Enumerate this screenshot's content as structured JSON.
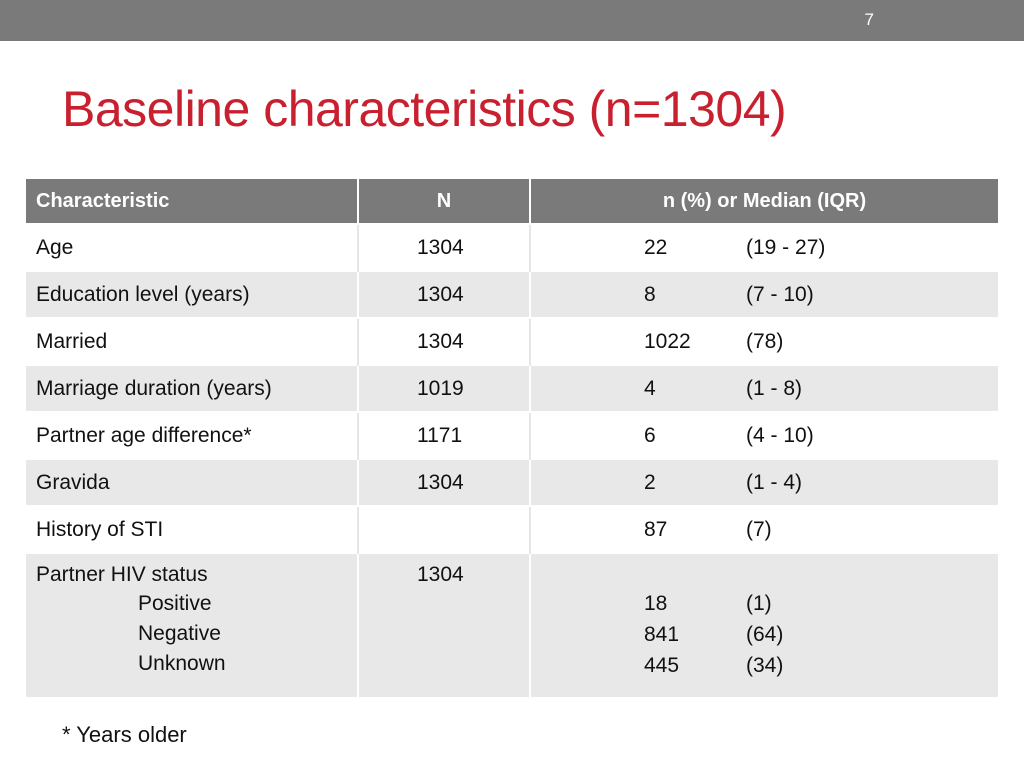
{
  "slide": {
    "page_number": "7",
    "title": "Baseline characteristics (n=1304)",
    "footnote": "* Years older",
    "colors": {
      "title": "#c8202f",
      "header_bg": "#7a7a7a",
      "row_alt": "#e8e8e8"
    }
  },
  "table": {
    "headers": [
      "Characteristic",
      "N",
      "n (%) or Median (IQR)"
    ],
    "rows": [
      {
        "label": "Age",
        "n": "1304",
        "value": "22",
        "range": "(19 - 27)"
      },
      {
        "label": "Education level (years)",
        "n": "1304",
        "value": "8",
        "range": "(7 - 10)"
      },
      {
        "label": "Married",
        "n": "1304",
        "value": "1022",
        "range": "(78)"
      },
      {
        "label": "Marriage duration (years)",
        "n": "1019",
        "value": "4",
        "range": "(1 - 8)"
      },
      {
        "label": "Partner age difference*",
        "n": "1171",
        "value": "6",
        "range": "(4 - 10)"
      },
      {
        "label": "Gravida",
        "n": "1304",
        "value": "2",
        "range": "(1 - 4)"
      },
      {
        "label": "History of STI",
        "n": "",
        "value": "87",
        "range": "(7)"
      }
    ],
    "hiv": {
      "label": "Partner HIV status",
      "n": "1304",
      "sub": [
        {
          "label": "Positive",
          "value": "18",
          "range": "(1)"
        },
        {
          "label": "Negative",
          "value": "841",
          "range": "(64)"
        },
        {
          "label": "Unknown",
          "value": "445",
          "range": "(34)"
        }
      ]
    }
  }
}
